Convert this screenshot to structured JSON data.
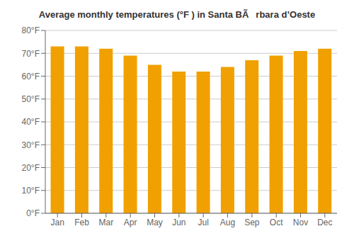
{
  "chart_data": {
    "type": "bar",
    "title": "Average monthly temperatures (°F ) in Santa BÃrbara d’Oeste",
    "categories": [
      "Jan",
      "Feb",
      "Mar",
      "Apr",
      "May",
      "Jun",
      "Jul",
      "Aug",
      "Sep",
      "Oct",
      "Nov",
      "Dec"
    ],
    "values": [
      73,
      73,
      72,
      69,
      65,
      62,
      62,
      64,
      67,
      69,
      71,
      72
    ],
    "color": "#F0A000",
    "ylim": [
      0,
      80
    ],
    "yticks": [
      {
        "value": 0,
        "label": "0°F"
      },
      {
        "value": 10,
        "label": "10°F"
      },
      {
        "value": 20,
        "label": "20°F"
      },
      {
        "value": 30,
        "label": "30°F"
      },
      {
        "value": 40,
        "label": "40°F"
      },
      {
        "value": 50,
        "label": "50°F"
      },
      {
        "value": 60,
        "label": "60°F"
      },
      {
        "value": 70,
        "label": "70°F"
      },
      {
        "value": 80,
        "label": "80°F"
      }
    ],
    "grid": true
  }
}
